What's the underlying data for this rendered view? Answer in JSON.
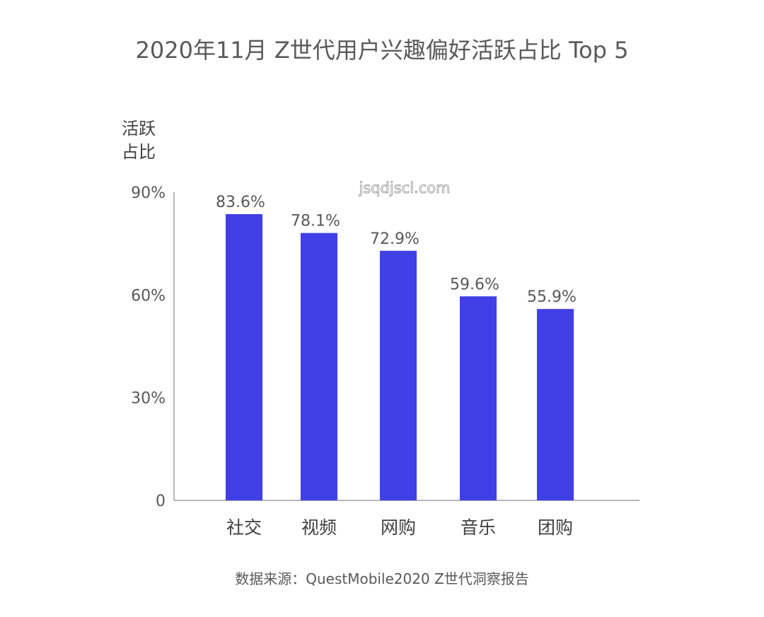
{
  "chart_data": {
    "type": "bar",
    "title": "2020年11月 Z世代用户兴趣偏好活跃占比 Top 5",
    "ylabel_lines": [
      "活跃",
      "占比"
    ],
    "xlabel": "",
    "categories": [
      "社交",
      "视频",
      "网购",
      "音乐",
      "团购"
    ],
    "values": [
      83.6,
      78.1,
      72.9,
      59.6,
      55.9
    ],
    "value_labels": [
      "83.6%",
      "78.1%",
      "72.9%",
      "59.6%",
      "55.9%"
    ],
    "ylim": [
      0,
      90
    ],
    "yticks": [
      0,
      30,
      60,
      90
    ],
    "ytick_labels": [
      "0",
      "30%",
      "60%",
      "90%"
    ],
    "bar_color": "#4040e6",
    "axis_color": "#8c8c8c",
    "grid": false
  },
  "watermark": "jsqdjscl.com",
  "source": "数据来源：QuestMobile2020 Z世代洞察报告"
}
